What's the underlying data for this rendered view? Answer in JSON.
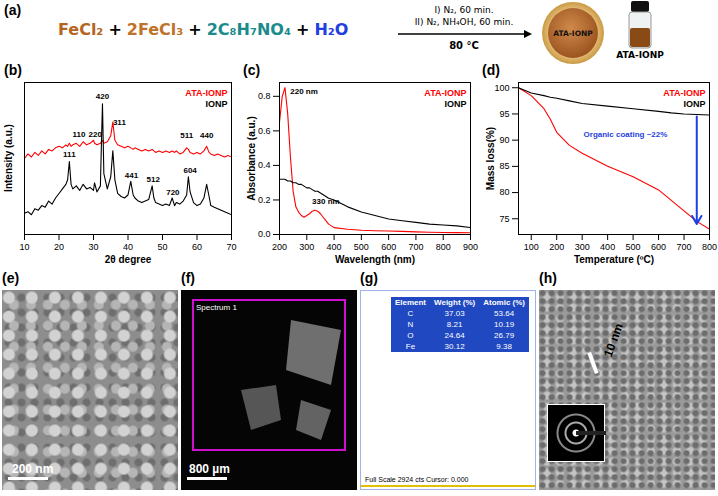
{
  "scheme": {
    "title": "(a)",
    "reactants": [
      {
        "text": "FeCl₂",
        "color": "#b5651d"
      },
      {
        "text": "2FeCl₃",
        "color": "#c0712a"
      },
      {
        "text": "2C₈H₇NO₄",
        "color": "#1b8b8b"
      },
      {
        "text": "H₂O",
        "color": "#1f3fe0"
      }
    ],
    "separator": "+",
    "conditions": [
      "I) N₂, 60 min.",
      "II) N₂, NH₄OH, 60 min."
    ],
    "temperature": "80 °C",
    "product": "ATA-IONP",
    "vial_label": "ATA-IONP"
  },
  "chart_data": [
    {
      "type": "line",
      "title": "(b)",
      "x_label": "2θ degree",
      "y_label": "Intensity (a.u.)",
      "x": [
        10,
        11,
        12,
        13,
        14,
        15,
        16,
        17,
        18,
        19,
        20,
        21,
        22,
        22.5,
        23,
        23.5,
        24,
        25,
        26,
        27,
        28,
        29,
        30,
        30.3,
        31,
        32,
        32.3,
        32.6,
        33,
        34,
        35,
        35.6,
        36.2,
        37,
        38,
        39,
        40,
        40.8,
        41.5,
        42,
        43,
        44,
        45,
        46,
        47,
        47.5,
        48,
        49,
        50,
        51,
        52,
        52.8,
        53.5,
        54,
        55,
        56,
        57,
        57.5,
        58,
        59,
        60,
        61,
        62,
        62.8,
        63.5,
        64,
        65,
        66,
        67,
        68,
        69,
        70
      ],
      "series": [
        {
          "name": "ATA-IONP",
          "color": "#ff0000",
          "values": [
            50,
            53,
            51,
            54,
            52,
            55,
            53,
            56,
            55,
            57,
            58,
            57,
            59,
            58,
            60,
            58,
            59,
            60,
            58,
            61,
            59,
            60,
            62,
            60,
            59,
            60,
            61,
            62,
            60,
            61,
            65,
            74,
            62,
            59,
            58,
            57,
            58,
            57,
            56,
            57,
            56,
            55,
            56,
            55,
            56,
            55,
            54,
            55,
            54,
            55,
            54,
            55,
            54,
            55,
            53,
            54,
            57,
            56,
            54,
            53,
            54,
            53,
            55,
            58,
            54,
            53,
            52,
            53,
            52,
            51,
            52,
            51
          ]
        },
        {
          "name": "IONP",
          "color": "#000000",
          "values": [
            14,
            15,
            13,
            17,
            16,
            19,
            18,
            22,
            20,
            24,
            27,
            30,
            33,
            36,
            48,
            33,
            30,
            32,
            29,
            33,
            30,
            31,
            29,
            34,
            28,
            32,
            60,
            86,
            40,
            30,
            38,
            55,
            36,
            27,
            25,
            24,
            26,
            35,
            26,
            24,
            22,
            21,
            22,
            23,
            32,
            24,
            21,
            20,
            19,
            20,
            19,
            24,
            19,
            21,
            20,
            22,
            26,
            38,
            28,
            21,
            19,
            20,
            24,
            33,
            25,
            19,
            18,
            17,
            16,
            15,
            14,
            13
          ]
        }
      ],
      "xlim": [
        10,
        70
      ],
      "xticks": [
        10,
        20,
        30,
        40,
        50,
        60,
        70
      ],
      "ylim": [
        0,
        100
      ],
      "tick_labels": "x",
      "legend": "top-right",
      "annotations": [
        {
          "text": "110",
          "x": 25.8,
          "y": 66
        },
        {
          "text": "220",
          "x": 30.5,
          "y": 66
        },
        {
          "text": "420",
          "x": 32.6,
          "y": 91
        },
        {
          "text": "311",
          "x": 37.5,
          "y": 74
        },
        {
          "text": "511",
          "x": 57,
          "y": 65
        },
        {
          "text": "440",
          "x": 62.8,
          "y": 65
        },
        {
          "text": "111",
          "x": 23,
          "y": 53
        },
        {
          "text": "441",
          "x": 41,
          "y": 39
        },
        {
          "text": "512",
          "x": 47.3,
          "y": 36
        },
        {
          "text": "720",
          "x": 53,
          "y": 28
        },
        {
          "text": "604",
          "x": 58,
          "y": 42
        }
      ]
    },
    {
      "type": "line",
      "title": "(c)",
      "x_label": "Wavelength (nm)",
      "y_label": "Absorbance (a.u.)",
      "x": [
        200,
        210,
        220,
        230,
        240,
        250,
        260,
        270,
        280,
        290,
        300,
        310,
        320,
        330,
        340,
        350,
        360,
        370,
        380,
        400,
        450,
        500,
        550,
        600,
        650,
        700,
        750,
        800,
        850,
        900
      ],
      "series": [
        {
          "name": "ATA-IONP",
          "color": "#ff0000",
          "values": [
            0.65,
            0.8,
            0.85,
            0.7,
            0.45,
            0.25,
            0.16,
            0.13,
            0.11,
            0.1,
            0.11,
            0.12,
            0.135,
            0.14,
            0.135,
            0.12,
            0.1,
            0.08,
            0.06,
            0.04,
            0.03,
            0.025,
            0.022,
            0.02,
            0.018,
            0.015,
            0.013,
            0.012,
            0.011,
            0.01
          ]
        },
        {
          "name": "IONP",
          "color": "#000000",
          "values": [
            0.32,
            0.32,
            0.32,
            0.31,
            0.31,
            0.3,
            0.3,
            0.29,
            0.29,
            0.28,
            0.27,
            0.27,
            0.26,
            0.25,
            0.25,
            0.24,
            0.23,
            0.22,
            0.21,
            0.2,
            0.16,
            0.13,
            0.11,
            0.09,
            0.08,
            0.07,
            0.06,
            0.055,
            0.05,
            0.04
          ]
        }
      ],
      "xlim": [
        200,
        900
      ],
      "xticks": [
        200,
        300,
        400,
        500,
        600,
        700,
        800,
        900
      ],
      "ylim": [
        0,
        0.88
      ],
      "yticks": [
        {
          "value": 0,
          "label": "0.0"
        },
        0.2,
        0.4,
        0.6,
        0.8
      ],
      "legend": "top-right",
      "annotations": [
        {
          "text": "220 nm",
          "x": 290,
          "y": 0.83
        },
        {
          "text": "330 nm",
          "x": 370,
          "y": 0.19
        }
      ]
    },
    {
      "type": "line",
      "title": "(d)",
      "x_label": "Temperature (ºC)",
      "y_label": "Mass loss(%)",
      "x": [
        50,
        100,
        150,
        175,
        200,
        250,
        300,
        400,
        500,
        600,
        650,
        700,
        750,
        800
      ],
      "series": [
        {
          "name": "ATA-IONP",
          "color": "#ff0000",
          "values": [
            100,
            98.5,
            96,
            94,
            91.5,
            89,
            87.5,
            85,
            83,
            80.5,
            78.5,
            76.5,
            74.5,
            73
          ]
        },
        {
          "name": "IONP",
          "color": "#000000",
          "values": [
            100,
            99,
            98.5,
            98.2,
            98,
            97.5,
            97,
            96.5,
            96,
            95.5,
            95.2,
            95,
            94.9,
            94.8
          ]
        }
      ],
      "xlim": [
        50,
        800
      ],
      "xticks": [
        100,
        200,
        300,
        400,
        500,
        600,
        700,
        800
      ],
      "ylim": [
        72,
        101
      ],
      "yticks": [
        75,
        80,
        85,
        90,
        95,
        100
      ],
      "legend": "top-right",
      "annotations": [
        {
          "text": "Organic coating ~22%",
          "x": 470,
          "y": 91,
          "color": "#1f3fe0",
          "arrow": {
            "x1": 750,
            "y1": 94.5,
            "x2": 750,
            "y2": 74
          }
        }
      ]
    }
  ],
  "images": [
    {
      "title": "(e)",
      "scale_bar": "200 nm"
    },
    {
      "title": "(f)",
      "scale_bar": "800 µm",
      "region_label": "Spectrum 1"
    },
    {
      "title": "(g)",
      "table": {
        "header": [
          "Element",
          "Weight (%)",
          "Atomic (%)"
        ],
        "rows": [
          [
            "C",
            "37.03",
            "53.64"
          ],
          [
            "N",
            "8.21",
            "10.19"
          ],
          [
            "O",
            "24.64",
            "26.79"
          ],
          [
            "Fe",
            "30.12",
            "9.38"
          ]
        ]
      },
      "footer": "Full Scale 2924 cts Cursor: 0.000"
    },
    {
      "title": "(h)",
      "scale_bar": "10 nm"
    }
  ]
}
